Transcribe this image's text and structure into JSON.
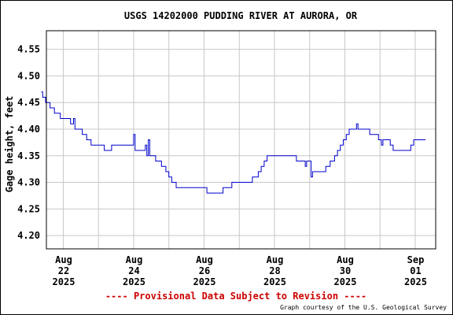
{
  "chart_data": {
    "type": "line",
    "title": "USGS 14202000 PUDDING RIVER AT AURORA, OR",
    "ylabel": "Gage height, feet",
    "xlabel": "",
    "ylim": [
      4.175,
      4.585
    ],
    "xlim_days": [
      0,
      10.8
    ],
    "y_ticks": [
      4.2,
      4.25,
      4.3,
      4.35,
      4.4,
      4.45,
      4.5,
      4.55
    ],
    "y_tick_labels": [
      "4.20",
      "4.25",
      "4.30",
      "4.35",
      "4.40",
      "4.45",
      "4.50",
      "4.55"
    ],
    "x_ticks": [
      {
        "lines": [
          "Aug",
          "22",
          "2025"
        ]
      },
      {
        "lines": [
          "Aug",
          "24",
          "2025"
        ]
      },
      {
        "lines": [
          "Aug",
          "26",
          "2025"
        ]
      },
      {
        "lines": [
          "Aug",
          "28",
          "2025"
        ]
      },
      {
        "lines": [
          "Aug",
          "30",
          "2025"
        ]
      },
      {
        "lines": [
          "Sep",
          "01",
          "2025"
        ]
      }
    ],
    "grid": true,
    "series": [
      {
        "color": "#0000cc",
        "points": [
          [
            "2025-08-21 08:00",
            4.47
          ],
          [
            "2025-08-21 09:00",
            4.46
          ],
          [
            "2025-08-21 11:00",
            4.45
          ],
          [
            "2025-08-21 14:00",
            4.44
          ],
          [
            "2025-08-21 17:00",
            4.43
          ],
          [
            "2025-08-21 21:00",
            4.42
          ],
          [
            "2025-08-22 02:00",
            4.42
          ],
          [
            "2025-08-22 04:00",
            4.41
          ],
          [
            "2025-08-22 06:00",
            4.42
          ],
          [
            "2025-08-22 07:00",
            4.4
          ],
          [
            "2025-08-22 10:00",
            4.4
          ],
          [
            "2025-08-22 12:00",
            4.39
          ],
          [
            "2025-08-22 15:00",
            4.38
          ],
          [
            "2025-08-22 18:00",
            4.37
          ],
          [
            "2025-08-23 00:00",
            4.37
          ],
          [
            "2025-08-23 03:00",
            4.36
          ],
          [
            "2025-08-23 06:00",
            4.36
          ],
          [
            "2025-08-23 08:00",
            4.37
          ],
          [
            "2025-08-23 22:00",
            4.37
          ],
          [
            "2025-08-23 23:00",
            4.39
          ],
          [
            "2025-08-24 00:00",
            4.36
          ],
          [
            "2025-08-24 06:00",
            4.36
          ],
          [
            "2025-08-24 07:00",
            4.37
          ],
          [
            "2025-08-24 08:00",
            4.35
          ],
          [
            "2025-08-24 09:00",
            4.38
          ],
          [
            "2025-08-24 10:00",
            4.35
          ],
          [
            "2025-08-24 12:00",
            4.35
          ],
          [
            "2025-08-24 14:00",
            4.34
          ],
          [
            "2025-08-24 16:00",
            4.34
          ],
          [
            "2025-08-24 18:00",
            4.33
          ],
          [
            "2025-08-24 21:00",
            4.32
          ],
          [
            "2025-08-24 23:00",
            4.31
          ],
          [
            "2025-08-25 01:00",
            4.3
          ],
          [
            "2025-08-25 04:00",
            4.29
          ],
          [
            "2025-08-25 12:00",
            4.29
          ],
          [
            "2025-08-26 00:00",
            4.29
          ],
          [
            "2025-08-26 01:00",
            4.28
          ],
          [
            "2025-08-26 10:00",
            4.28
          ],
          [
            "2025-08-26 12:00",
            4.29
          ],
          [
            "2025-08-26 18:00",
            4.3
          ],
          [
            "2025-08-27 06:00",
            4.3
          ],
          [
            "2025-08-27 08:00",
            4.31
          ],
          [
            "2025-08-27 12:00",
            4.32
          ],
          [
            "2025-08-27 14:00",
            4.33
          ],
          [
            "2025-08-27 16:00",
            4.34
          ],
          [
            "2025-08-27 18:00",
            4.35
          ],
          [
            "2025-08-28 12:00",
            4.35
          ],
          [
            "2025-08-28 14:00",
            4.34
          ],
          [
            "2025-08-28 18:00",
            4.34
          ],
          [
            "2025-08-28 20:00",
            4.33
          ],
          [
            "2025-08-28 21:00",
            4.34
          ],
          [
            "2025-08-29 00:00",
            4.31
          ],
          [
            "2025-08-29 01:00",
            4.32
          ],
          [
            "2025-08-29 08:00",
            4.32
          ],
          [
            "2025-08-29 10:00",
            4.33
          ],
          [
            "2025-08-29 13:00",
            4.34
          ],
          [
            "2025-08-29 16:00",
            4.35
          ],
          [
            "2025-08-29 18:00",
            4.36
          ],
          [
            "2025-08-29 20:00",
            4.37
          ],
          [
            "2025-08-29 22:00",
            4.38
          ],
          [
            "2025-08-30 00:00",
            4.39
          ],
          [
            "2025-08-30 02:00",
            4.4
          ],
          [
            "2025-08-30 06:00",
            4.4
          ],
          [
            "2025-08-30 07:00",
            4.41
          ],
          [
            "2025-08-30 08:00",
            4.4
          ],
          [
            "2025-08-30 14:00",
            4.4
          ],
          [
            "2025-08-30 16:00",
            4.39
          ],
          [
            "2025-08-30 20:00",
            4.39
          ],
          [
            "2025-08-30 22:00",
            4.38
          ],
          [
            "2025-08-31 00:00",
            4.37
          ],
          [
            "2025-08-31 01:00",
            4.38
          ],
          [
            "2025-08-31 06:00",
            4.37
          ],
          [
            "2025-08-31 08:00",
            4.36
          ],
          [
            "2025-08-31 18:00",
            4.36
          ],
          [
            "2025-08-31 20:00",
            4.37
          ],
          [
            "2025-08-31 22:00",
            4.38
          ],
          [
            "2025-09-01 06:00",
            4.38
          ]
        ]
      }
    ],
    "footer_notice": "---- Provisional Data Subject to Revision ----",
    "credit": "Graph courtesy of the U.S. Geological Survey"
  },
  "colors": {
    "line": "#0000cc",
    "grid": "#c8c8c8",
    "notice": "#cc0000",
    "axis": "#000000"
  }
}
